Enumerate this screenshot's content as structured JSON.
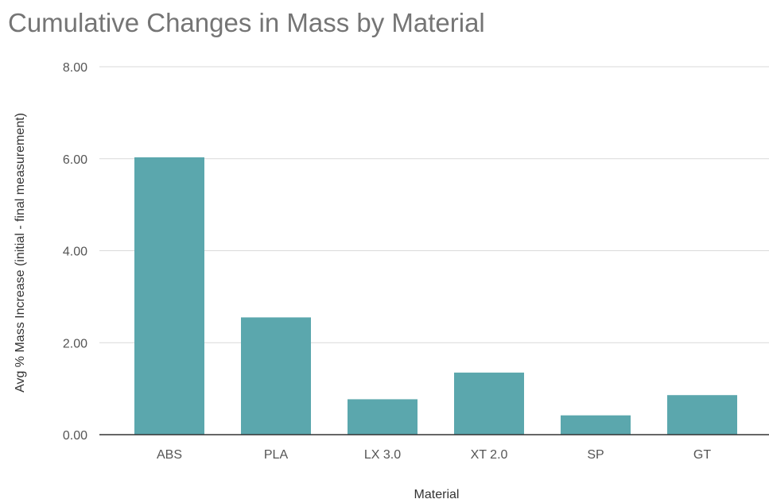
{
  "chart_data": {
    "type": "bar",
    "title": "Cumulative Changes in Mass by Material",
    "xlabel": "Material",
    "ylabel": "Avg % Mass Increase (initial - final measurement)",
    "categories": [
      "ABS",
      "PLA",
      "LX 3.0",
      "XT 2.0",
      "SP",
      "GT"
    ],
    "values": [
      6.03,
      2.55,
      0.77,
      1.35,
      0.42,
      0.86
    ],
    "ylim": [
      0,
      8
    ],
    "yticks": [
      "0.00",
      "2.00",
      "4.00",
      "6.00",
      "8.00"
    ],
    "grid": true,
    "bar_color": "#5ba7ad",
    "legend": "none"
  }
}
